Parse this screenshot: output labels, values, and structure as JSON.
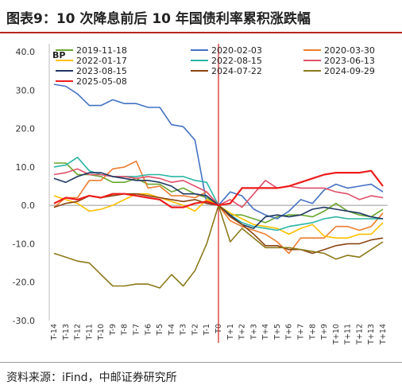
{
  "header": {
    "title": "图表9：10 次降息前后 10 年国债利率累积涨跌幅"
  },
  "footer": {
    "source": "资料来源：iFind，中邮证券研究所"
  },
  "chart_data": {
    "type": "line",
    "title": "图表9：10 次降息前后 10 年国债利率累积涨跌幅",
    "ylabel": "BP",
    "ylim": [
      -30,
      40
    ],
    "yticks": [
      40,
      30,
      20,
      10,
      0,
      -10,
      -20,
      -30
    ],
    "ytick_labels": [
      "40.0",
      "30.0",
      "20.0",
      "10.0",
      "0.0",
      "-10.0",
      "-20.0",
      "-30.0"
    ],
    "x": [
      "T-14",
      "T-13",
      "T-12",
      "T-11",
      "T-10",
      "T-9",
      "T-8",
      "T-7",
      "T-6",
      "T-5",
      "T-4",
      "T-3",
      "T-2",
      "T-1",
      "T0",
      "T+1",
      "T+2",
      "T+3",
      "T+4",
      "T+5",
      "T+6",
      "T+7",
      "T+8",
      "T+9",
      "T+10",
      "T+11",
      "T+12",
      "T+13",
      "T+14"
    ],
    "vertical_marker": "T0",
    "marker_color": "#d42020",
    "legend_position": "top",
    "series": [
      {
        "name": "2019-11-18",
        "color": "#6aa62f",
        "values": [
          11.0,
          11.0,
          8.0,
          8.0,
          7.5,
          6.0,
          6.0,
          7.0,
          5.5,
          5.5,
          3.5,
          4.5,
          3.0,
          2.0,
          0,
          -2.5,
          -2.5,
          -3.5,
          -4.5,
          -3.0,
          -2.5,
          -2.5,
          -3.0,
          -1.5,
          0.5,
          -1.5,
          -2.5,
          -3.0,
          -1.0
        ]
      },
      {
        "name": "2020-02-03",
        "color": "#4472c4",
        "values": [
          31.5,
          31.0,
          29.0,
          26.0,
          26.0,
          27.5,
          26.5,
          26.5,
          25.5,
          25.5,
          21.0,
          20.5,
          17.0,
          0.5,
          0,
          3.5,
          2.5,
          -1.0,
          -2.5,
          -3.5,
          -1.5,
          1.5,
          0.5,
          4.0,
          5.5,
          4.5,
          5.0,
          5.5,
          3.5
        ]
      },
      {
        "name": "2020-03-30",
        "color": "#ed7d31",
        "values": [
          -0.5,
          2.0,
          2.0,
          6.5,
          6.5,
          9.5,
          10.0,
          11.5,
          4.5,
          5.0,
          2.5,
          2.5,
          2.0,
          3.5,
          0,
          -4.0,
          -5.5,
          -6.5,
          -7.5,
          -9.5,
          -12.5,
          -8.5,
          -8.5,
          -8.5,
          -5.5,
          -5.5,
          -6.5,
          -5.5,
          -2.0
        ]
      },
      {
        "name": "2022-01-17",
        "color": "#ffc000",
        "values": [
          2.5,
          1.5,
          0.5,
          -1.5,
          -1.0,
          0.0,
          1.5,
          3.0,
          3.0,
          2.0,
          1.0,
          0.0,
          -1.5,
          1.5,
          0,
          -2.0,
          -3.5,
          -5.0,
          -5.5,
          -6.0,
          -7.5,
          -6.0,
          -5.0,
          -8.0,
          -8.5,
          -8.5,
          -7.5,
          -7.5,
          -4.5
        ]
      },
      {
        "name": "2022-08-15",
        "color": "#2ab5a5",
        "values": [
          10.0,
          10.5,
          12.5,
          9.0,
          8.0,
          7.5,
          7.5,
          7.5,
          8.0,
          8.0,
          7.5,
          7.5,
          6.5,
          6.0,
          0,
          -2.5,
          -4.5,
          -5.5,
          -6.0,
          -6.5,
          -5.5,
          -5.0,
          -4.5,
          -3.5,
          -3.0,
          -3.5,
          -3.5,
          -3.5,
          -3.5
        ]
      },
      {
        "name": "2023-06-13",
        "color": "#e0506a",
        "values": [
          8.0,
          8.5,
          9.5,
          8.0,
          8.0,
          7.5,
          7.5,
          7.0,
          7.5,
          7.0,
          6.0,
          6.5,
          5.0,
          3.5,
          0,
          1.5,
          -0.5,
          3.0,
          6.5,
          4.5,
          5.0,
          4.5,
          4.5,
          4.5,
          3.5,
          3.0,
          1.5,
          2.5,
          2.0
        ]
      },
      {
        "name": "2023-08-15",
        "color": "#1f3864",
        "values": [
          7.0,
          6.0,
          7.5,
          8.5,
          8.5,
          7.5,
          7.0,
          6.5,
          6.5,
          6.0,
          5.0,
          3.0,
          3.0,
          2.5,
          0,
          -2.5,
          -5.0,
          -6.0,
          -3.0,
          -2.5,
          -3.0,
          -2.5,
          -1.0,
          -0.5,
          -1.0,
          -1.5,
          -2.0,
          -3.0,
          -3.5
        ]
      },
      {
        "name": "2024-07-22",
        "color": "#8b4513",
        "values": [
          -0.5,
          0.5,
          1.0,
          2.5,
          2.0,
          2.5,
          3.0,
          3.0,
          2.5,
          2.0,
          1.5,
          1.0,
          1.5,
          0.5,
          0,
          -3.0,
          -5.0,
          -7.5,
          -10.5,
          -10.5,
          -11.5,
          -11.5,
          -12.5,
          -11.5,
          -10.5,
          -10.0,
          -10.0,
          -9.0,
          -8.5
        ]
      },
      {
        "name": "2024-09-29",
        "color": "#8b7a1a",
        "values": [
          -12.5,
          -13.5,
          -14.5,
          -15.0,
          -18.0,
          -21.0,
          -21.0,
          -20.5,
          -20.5,
          -21.5,
          -18.0,
          -21.0,
          -17.0,
          -10.0,
          0,
          -9.5,
          -6.0,
          -8.5,
          -11.0,
          -11.0,
          -11.0,
          -11.5,
          -12.0,
          -12.5,
          -14.0,
          -13.0,
          -13.5,
          -11.5,
          -9.5
        ]
      },
      {
        "name": "2025-05-08",
        "color": "#ee1c1c",
        "values": [
          0.5,
          2.0,
          1.5,
          2.5,
          2.0,
          3.0,
          3.0,
          2.5,
          2.0,
          1.5,
          -0.5,
          -0.5,
          0.5,
          1.0,
          0,
          0.5,
          4.5,
          4.5,
          4.5,
          4.5,
          5.0,
          6.0,
          7.0,
          8.0,
          8.5,
          8.5,
          8.5,
          9.0,
          5.0
        ]
      }
    ]
  }
}
